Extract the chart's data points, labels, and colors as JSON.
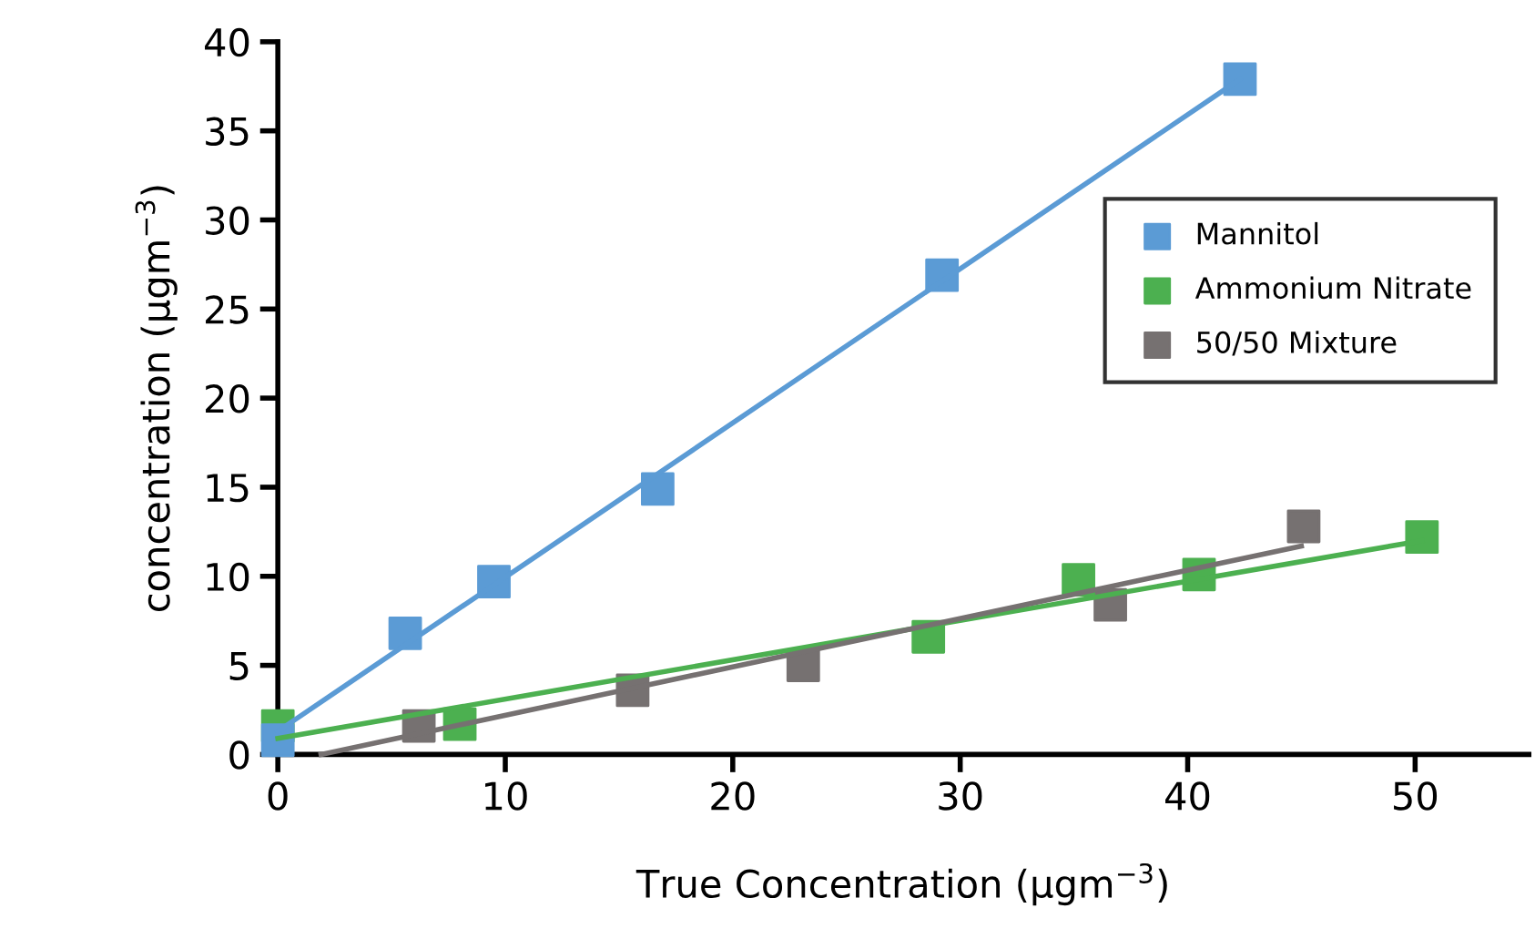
{
  "chart_data": {
    "type": "scatter",
    "xlabel": "True Concentration (µgm$^{−3}$)",
    "ylabel": "concentration (µgm$^{−3}$)",
    "xlim": [
      0,
      55
    ],
    "xticks": [
      0,
      10,
      20,
      30,
      40,
      50
    ],
    "ylim": [
      0,
      40
    ],
    "yticks": [
      0,
      5,
      10,
      15,
      20,
      25,
      30,
      35,
      40
    ],
    "grid": false,
    "legend": "top right",
    "series": [
      {
        "name": "Mannitol",
        "color": "#5b9bd5",
        "x": [
          0,
          5.6,
          9.5,
          16.7,
          29.2,
          42.3
        ],
        "values": [
          0.8,
          6.8,
          9.7,
          14.9,
          26.9,
          37.9
        ],
        "marker": "square"
      },
      {
        "name": "Ammonium Nitrate",
        "color": "#4cb050",
        "x": [
          0,
          8.0,
          28.6,
          35.2,
          40.5,
          50.3
        ],
        "values": [
          1.6,
          1.7,
          6.6,
          9.8,
          10.1,
          12.2
        ],
        "marker": "square"
      },
      {
        "name": "50/50 Mixture",
        "color": "#767171",
        "x": [
          6.2,
          15.6,
          23.1,
          36.6,
          45.1
        ],
        "values": [
          1.6,
          3.6,
          5.0,
          8.4,
          12.8
        ],
        "marker": "square"
      },
      {
        "type": "line",
        "color": "#5b9bd5",
        "x": [
          0,
          42.3
        ],
        "values": [
          1.3,
          37.9
        ],
        "line_style": "solid"
      },
      {
        "type": "line",
        "color": "#4cb050",
        "x": [
          0,
          50.3
        ],
        "values": [
          0.9,
          12.0
        ],
        "line_style": "solid"
      },
      {
        "type": "line",
        "color": "#767171",
        "x": [
          1.9,
          45.0
        ],
        "values": [
          0,
          11.7
        ],
        "line_style": "solid"
      }
    ]
  }
}
